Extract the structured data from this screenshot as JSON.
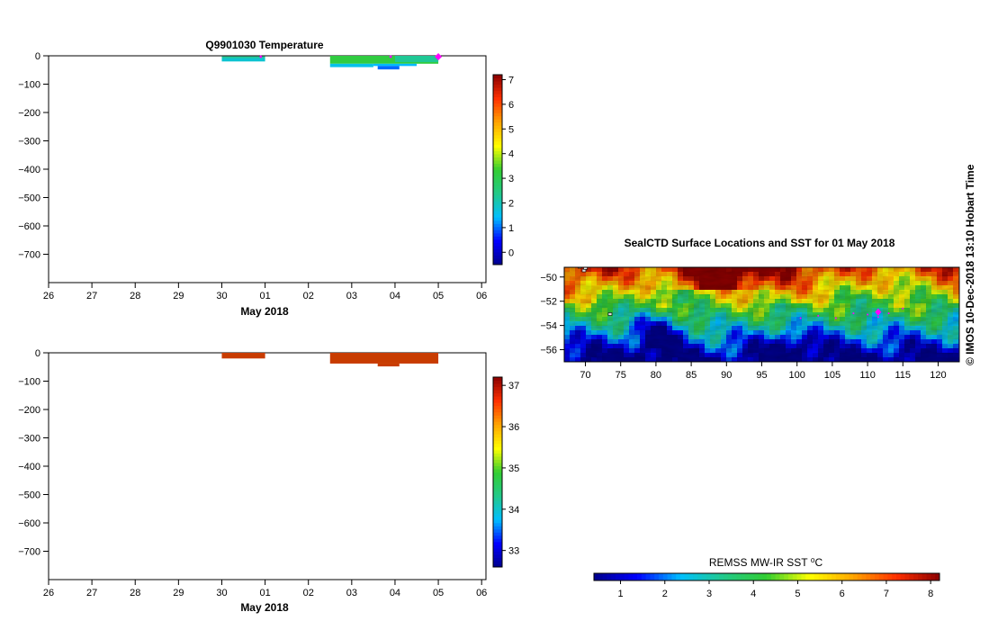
{
  "page": {
    "credit": "© IMOS 10-Dec-2018 13:10 Hobart Time"
  },
  "colors": {
    "sst_stops": [
      "#00008b",
      "#0000ff",
      "#00bfff",
      "#22c98a",
      "#32cd32",
      "#ffff00",
      "#ffa500",
      "#ff3000",
      "#8b0000"
    ],
    "marker": "#ff00ff",
    "salinity_fill": "#c83c00"
  },
  "chart_data": [
    {
      "id": "temperature",
      "type": "heatmap",
      "title": "Q9901030  Temperature",
      "xlabel": "May 2018",
      "ylabel": "",
      "x_tick_labels": [
        "26",
        "27",
        "28",
        "29",
        "30",
        "01",
        "02",
        "03",
        "04",
        "05",
        "06"
      ],
      "xlim": [
        0,
        10.1
      ],
      "ylim": [
        -800,
        0
      ],
      "y_ticks": [
        0,
        -100,
        -200,
        -300,
        -400,
        -500,
        -600,
        -700
      ],
      "colorbar": {
        "min": -0.5,
        "max": 7.2,
        "ticks": [
          0,
          1,
          2,
          3,
          4,
          5,
          6,
          7
        ]
      },
      "series": [
        {
          "name": "profile",
          "x_start": 4.0,
          "x_end": 5.0,
          "depth_top": -8,
          "depth_bottom": -20,
          "value": 1.8
        },
        {
          "name": "profile",
          "x_start": 4.0,
          "x_end": 5.0,
          "depth_top": -2,
          "depth_bottom": -8,
          "value": 2.3
        },
        {
          "name": "profile",
          "x_start": 6.5,
          "x_end": 9.0,
          "depth_top": 0,
          "depth_bottom": -28,
          "value": 3.2
        },
        {
          "name": "profile",
          "x_start": 8.0,
          "x_end": 9.0,
          "depth_top": 0,
          "depth_bottom": -22,
          "value": 2.3
        },
        {
          "name": "profile",
          "x_start": 6.5,
          "x_end": 7.5,
          "depth_top": -28,
          "depth_bottom": -40,
          "value": 1.6
        },
        {
          "name": "profile",
          "x_start": 7.5,
          "x_end": 8.5,
          "depth_top": -28,
          "depth_bottom": -36,
          "value": 1.4
        },
        {
          "name": "profile",
          "x_start": 7.6,
          "x_end": 8.1,
          "depth_top": -36,
          "depth_bottom": -48,
          "value": 1.0
        }
      ],
      "markers": [
        {
          "x": 9.0,
          "depth": 0
        },
        {
          "x": 4.9,
          "depth": 0
        },
        {
          "x": 7.9,
          "depth": 0
        }
      ]
    },
    {
      "id": "salinity",
      "type": "heatmap",
      "title": "",
      "xlabel": "May 2018",
      "ylabel": "",
      "x_tick_labels": [
        "26",
        "27",
        "28",
        "29",
        "30",
        "01",
        "02",
        "03",
        "04",
        "05",
        "06"
      ],
      "xlim": [
        0,
        10.1
      ],
      "ylim": [
        -800,
        0
      ],
      "y_ticks": [
        0,
        -100,
        -200,
        -300,
        -400,
        -500,
        -600,
        -700
      ],
      "colorbar": {
        "min": 32.6,
        "max": 37.2,
        "ticks": [
          33,
          34,
          35,
          36,
          37
        ]
      },
      "series": [
        {
          "name": "profile",
          "x_start": 4.0,
          "x_end": 5.0,
          "depth_top": 0,
          "depth_bottom": -20,
          "value": 36.8
        },
        {
          "name": "profile",
          "x_start": 6.5,
          "x_end": 9.0,
          "depth_top": 0,
          "depth_bottom": -38,
          "value": 36.8
        },
        {
          "name": "profile",
          "x_start": 7.6,
          "x_end": 8.1,
          "depth_top": -38,
          "depth_bottom": -48,
          "value": 36.8
        }
      ]
    },
    {
      "id": "sst_map",
      "type": "heatmap",
      "title": "SealCTD Surface Locations and SST for 01 May 2018",
      "xlabel": "",
      "ylabel": "",
      "xlim": [
        67,
        123
      ],
      "ylim": [
        -57,
        -49.2
      ],
      "x_ticks": [
        70,
        75,
        80,
        85,
        90,
        95,
        100,
        105,
        110,
        115,
        120
      ],
      "y_ticks": [
        -50,
        -52,
        -54,
        -56
      ],
      "colorbar": {
        "label": "REMSS MW-IR SST ⁰C",
        "min": 0.4,
        "max": 8.2,
        "ticks": [
          1,
          2,
          3,
          4,
          5,
          6,
          7,
          8
        ],
        "orientation": "horizontal"
      },
      "track": [
        {
          "lon": 100.5,
          "lat": -53.4
        },
        {
          "lon": 103.0,
          "lat": -53.2
        },
        {
          "lon": 105.5,
          "lat": -53.4
        },
        {
          "lon": 108.0,
          "lat": -53.0
        },
        {
          "lon": 110.0,
          "lat": -53.1
        },
        {
          "lon": 111.5,
          "lat": -53.3
        },
        {
          "lon": 113.0,
          "lat": -53.0
        },
        {
          "lon": 115.0,
          "lat": -52.6
        }
      ],
      "current_position": {
        "lon": 111.5,
        "lat": -52.9
      },
      "land_points": [
        {
          "lon": 69.2,
          "lat": -49.2
        },
        {
          "lon": 69.8,
          "lat": -49.5
        },
        {
          "lon": 70.0,
          "lat": -49.3
        },
        {
          "lon": 73.5,
          "lat": -53.1
        }
      ]
    }
  ]
}
